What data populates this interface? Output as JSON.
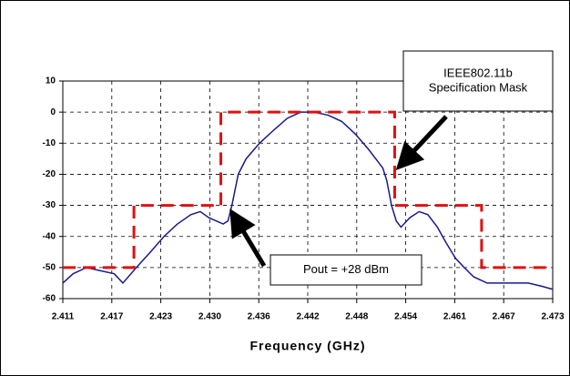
{
  "chart_data": {
    "type": "line",
    "x_label": "Frequency (GHz)",
    "xlim": [
      2.411,
      2.473
    ],
    "xticks": [
      {
        "value": 2.411,
        "label": "2.411"
      },
      {
        "value": 2.4172,
        "label": "2.417"
      },
      {
        "value": 2.4234,
        "label": "2.423"
      },
      {
        "value": 2.4296,
        "label": "2.430"
      },
      {
        "value": 2.4358,
        "label": "2.436"
      },
      {
        "value": 2.442,
        "label": "2.442"
      },
      {
        "value": 2.4482,
        "label": "2.448"
      },
      {
        "value": 2.4544,
        "label": "2.454"
      },
      {
        "value": 2.4606,
        "label": "2.461"
      },
      {
        "value": 2.4668,
        "label": "2.467"
      },
      {
        "value": 2.473,
        "label": "2.473"
      }
    ],
    "ylim": [
      -60,
      10
    ],
    "yticks": [
      10,
      0,
      -10,
      -20,
      -30,
      -40,
      -50,
      -60
    ],
    "grid": true,
    "series": [
      {
        "color": "#1a1a8c",
        "dashed": false,
        "x": [
          2.411,
          2.4123,
          2.414,
          2.4157,
          2.4175,
          2.4186,
          2.4203,
          2.4221,
          2.4238,
          2.4255,
          2.4272,
          2.4284,
          2.4295,
          2.4313,
          2.4319,
          2.4324,
          2.4332,
          2.4342,
          2.4359,
          2.4376,
          2.4394,
          2.4411,
          2.4428,
          2.4446,
          2.4463,
          2.448,
          2.4497,
          2.4515,
          2.452,
          2.4526,
          2.4532,
          2.4538,
          2.4549,
          2.4561,
          2.4572,
          2.4584,
          2.4595,
          2.4607,
          2.4618,
          2.463,
          2.4647,
          2.4664,
          2.4682,
          2.4699,
          2.4716,
          2.473
        ],
        "values": [
          -55,
          -52,
          -50,
          -51,
          -52,
          -55,
          -50,
          -45,
          -40,
          -36,
          -33,
          -32,
          -34,
          -36,
          -35,
          -30,
          -20,
          -15,
          -10,
          -6,
          -2,
          0,
          0,
          -1,
          -3,
          -7,
          -12,
          -18,
          -22,
          -30,
          -35,
          -37,
          -34,
          -32,
          -33,
          -37,
          -42,
          -47,
          -50,
          -53,
          -55,
          -55,
          -55,
          -55,
          -56,
          -57
        ]
      },
      {
        "color": "#e01010",
        "dashed": true,
        "x": [
          2.411,
          2.42,
          2.42,
          2.431,
          2.431,
          2.453,
          2.453,
          2.464,
          2.464,
          2.473
        ],
        "values": [
          -50,
          -50,
          -30,
          -30,
          0,
          0,
          -30,
          -30,
          -50,
          -50
        ]
      }
    ],
    "annotations": [
      {
        "text": [
          "IEEE802.11b",
          "Specification Mask"
        ]
      },
      {
        "text": [
          "Pout = +28 dBm"
        ]
      }
    ]
  }
}
